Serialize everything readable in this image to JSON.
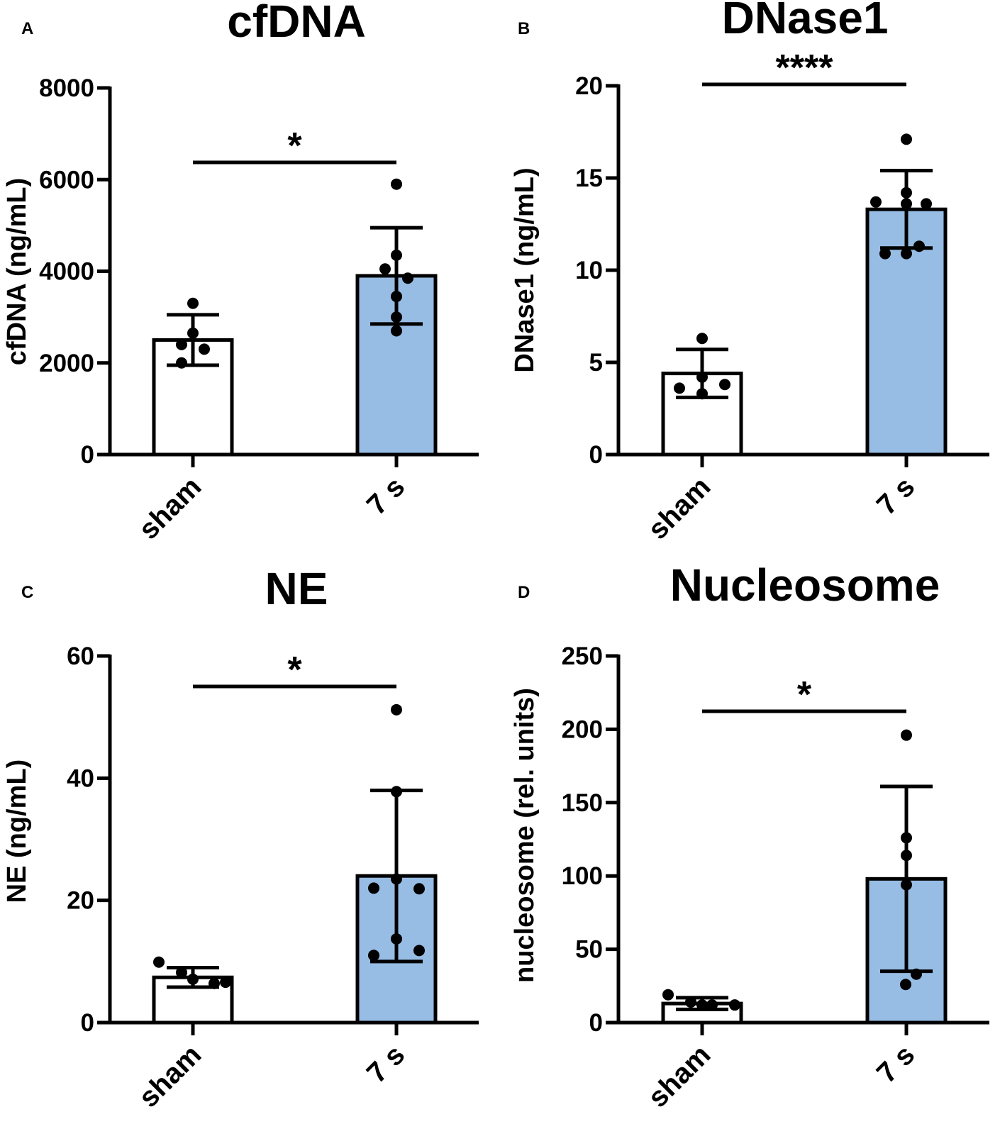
{
  "chart_data": [
    {
      "type": "bar",
      "panel_label": "A",
      "title": "cfDNA",
      "ylabel": "cfDNA (ng/mL)",
      "ylim": [
        0,
        8000
      ],
      "yticks": [
        0,
        2000,
        4000,
        6000,
        8000
      ],
      "categories": [
        "sham",
        "7 s"
      ],
      "colors": [
        "#ffffff",
        "#97bde4"
      ],
      "means": [
        2500,
        3900
      ],
      "sd": [
        550,
        1050
      ],
      "points": [
        [
          3300,
          2650,
          2400,
          2300,
          2000
        ],
        [
          5900,
          4350,
          4050,
          3850,
          3450,
          3000,
          2700
        ]
      ],
      "significance": "*"
    },
    {
      "type": "bar",
      "panel_label": "B",
      "title": "DNase1",
      "ylabel": "DNase1 (ng/mL)",
      "ylim": [
        0,
        20
      ],
      "yticks": [
        0,
        5,
        10,
        15,
        20
      ],
      "categories": [
        "sham",
        "7 s"
      ],
      "colors": [
        "#ffffff",
        "#97bde4"
      ],
      "means": [
        4.4,
        13.3
      ],
      "sd": [
        1.3,
        2.1
      ],
      "points": [
        [
          6.3,
          4.2,
          3.8,
          3.6,
          3.3
        ],
        [
          17.1,
          14.2,
          13.7,
          13.6,
          13.6,
          11.3,
          10.9,
          10.9
        ]
      ],
      "significance": "****"
    },
    {
      "type": "bar",
      "panel_label": "C",
      "title": "NE",
      "ylabel": "NE (ng/mL)",
      "ylim": [
        0,
        60
      ],
      "yticks": [
        0,
        20,
        40,
        60
      ],
      "categories": [
        "sham",
        "7 s"
      ],
      "colors": [
        "#ffffff",
        "#97bde4"
      ],
      "means": [
        7.4,
        24.0
      ],
      "sd": [
        1.6,
        14.0
      ],
      "points": [
        [
          9.9,
          8.2,
          7.1,
          6.4,
          6.6
        ],
        [
          51.2,
          37.8,
          23.5,
          22.0,
          21.9,
          13.7,
          11.8,
          11.0
        ]
      ],
      "significance": "*"
    },
    {
      "type": "bar",
      "panel_label": "D",
      "title": "Nucleosome",
      "ylabel": "nucleosome (rel. units)",
      "ylim": [
        0,
        250
      ],
      "yticks": [
        0,
        50,
        100,
        150,
        200,
        250
      ],
      "categories": [
        "sham",
        "7 s"
      ],
      "colors": [
        "#ffffff",
        "#97bde4"
      ],
      "means": [
        13,
        98
      ],
      "sd": [
        4,
        63
      ],
      "points": [
        [
          19,
          14,
          12,
          12,
          12
        ],
        [
          196,
          126,
          114,
          94,
          33,
          26
        ]
      ],
      "significance": "*"
    }
  ]
}
